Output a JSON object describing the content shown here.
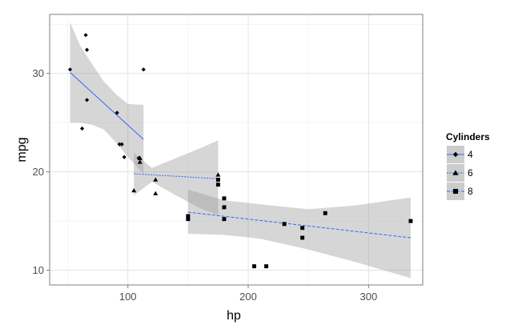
{
  "chart_data": {
    "type": "scatter",
    "xlabel": "hp",
    "ylabel": "mpg",
    "xlim": [
      35,
      345
    ],
    "ylim": [
      8.5,
      36
    ],
    "x_ticks": [
      100,
      200,
      300
    ],
    "y_ticks": [
      10,
      20,
      30
    ],
    "x_tick_labels": [
      "100",
      "200",
      "300"
    ],
    "y_tick_labels": [
      "10",
      "20",
      "30"
    ],
    "grid": true,
    "legend": {
      "title": "Cylinders",
      "position": "right"
    },
    "fit_color": "#3366ff",
    "band_color": "#999999",
    "panel_color": "#ffffff",
    "series": [
      {
        "name": "4",
        "marker": "diamond",
        "points": [
          {
            "x": 52,
            "y": 30.4
          },
          {
            "x": 62,
            "y": 24.4
          },
          {
            "x": 65,
            "y": 33.9
          },
          {
            "x": 66,
            "y": 32.4
          },
          {
            "x": 66,
            "y": 27.3
          },
          {
            "x": 91,
            "y": 26.0
          },
          {
            "x": 93,
            "y": 22.8
          },
          {
            "x": 95,
            "y": 22.8
          },
          {
            "x": 97,
            "y": 21.5
          },
          {
            "x": 109,
            "y": 21.4
          },
          {
            "x": 113,
            "y": 30.4
          }
        ],
        "fit": {
          "x": [
            52,
            113
          ],
          "y": [
            30.1,
            23.3
          ]
        },
        "band": {
          "x": [
            52,
            60,
            70,
            80,
            90,
            100,
            113
          ],
          "upper": [
            35.2,
            32.9,
            31.0,
            29.2,
            27.9,
            26.9,
            26.8
          ],
          "lower": [
            25.0,
            25.0,
            24.8,
            24.3,
            23.0,
            21.5,
            19.8
          ]
        }
      },
      {
        "name": "6",
        "marker": "triangle",
        "points": [
          {
            "x": 105,
            "y": 18.1
          },
          {
            "x": 110,
            "y": 21.0
          },
          {
            "x": 110,
            "y": 21.4
          },
          {
            "x": 123,
            "y": 17.8
          },
          {
            "x": 123,
            "y": 19.2
          },
          {
            "x": 175,
            "y": 19.7
          },
          {
            "x": 110,
            "y": 21.4
          }
        ],
        "fit": {
          "x": [
            105,
            175
          ],
          "y": [
            19.8,
            19.3
          ]
        },
        "band": {
          "x": [
            105,
            120,
            140,
            160,
            175
          ],
          "upper": [
            21.9,
            20.4,
            21.4,
            22.4,
            23.2
          ],
          "lower": [
            17.6,
            19.0,
            17.6,
            16.3,
            15.6
          ]
        }
      },
      {
        "name": "8",
        "marker": "square",
        "points": [
          {
            "x": 150,
            "y": 15.5
          },
          {
            "x": 150,
            "y": 15.2
          },
          {
            "x": 175,
            "y": 18.7
          },
          {
            "x": 175,
            "y": 19.2
          },
          {
            "x": 180,
            "y": 17.3
          },
          {
            "x": 180,
            "y": 16.4
          },
          {
            "x": 180,
            "y": 15.2
          },
          {
            "x": 205,
            "y": 10.4
          },
          {
            "x": 215,
            "y": 10.4
          },
          {
            "x": 230,
            "y": 14.7
          },
          {
            "x": 245,
            "y": 14.3
          },
          {
            "x": 245,
            "y": 13.3
          },
          {
            "x": 264,
            "y": 15.8
          },
          {
            "x": 335,
            "y": 15.0
          }
        ],
        "fit": {
          "x": [
            150,
            335
          ],
          "y": [
            15.9,
            13.3
          ]
        },
        "band": {
          "x": [
            150,
            180,
            210,
            250,
            290,
            335
          ],
          "upper": [
            18.2,
            17.1,
            16.7,
            16.2,
            16.6,
            17.4
          ],
          "lower": [
            13.7,
            13.6,
            13.2,
            12.1,
            10.8,
            9.2
          ]
        }
      }
    ]
  }
}
